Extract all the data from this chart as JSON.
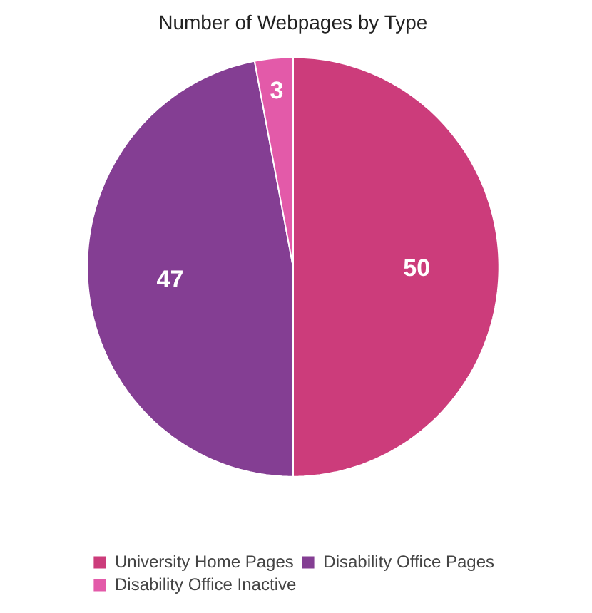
{
  "chart_data": {
    "type": "pie",
    "title": "Number of Webpages by Type",
    "categories": [
      "University Home Pages",
      "Disability Office Pages",
      "Disability Office Inactive"
    ],
    "values": [
      50,
      47,
      3
    ],
    "colors": [
      "#cc3c7b",
      "#843e93",
      "#e35aa9"
    ],
    "data_labels": true,
    "legend": "bottom"
  }
}
